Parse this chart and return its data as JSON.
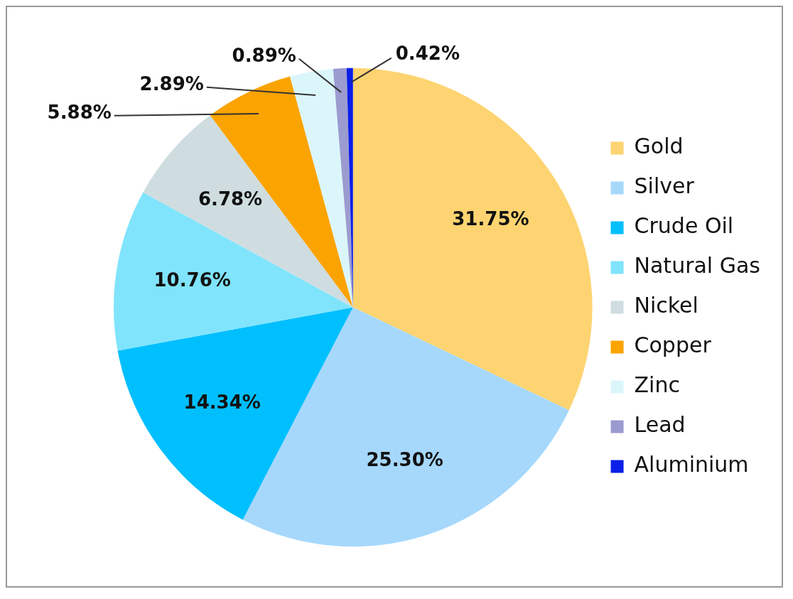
{
  "chart_data": {
    "type": "pie",
    "categories": [
      "Gold",
      "Silver",
      "Crude Oil",
      "Natural Gas",
      "Nickel",
      "Copper",
      "Zinc",
      "Lead",
      "Aluminium"
    ],
    "values": [
      31.75,
      25.3,
      14.34,
      10.76,
      6.78,
      5.88,
      2.89,
      0.89,
      0.42
    ],
    "colors": [
      "#fdd471",
      "#a6d8fc",
      "#00bfff",
      "#80e4fc",
      "#cfdde0",
      "#fba300",
      "#dbf6fb",
      "#9b9bd0",
      "#0a1ee8"
    ],
    "value_labels": [
      "31.75%",
      "25.30%",
      "14.34%",
      "10.76%",
      "6.78%",
      "5.88%",
      "2.89%",
      "0.89%",
      "0.42%"
    ],
    "legend": "right"
  }
}
